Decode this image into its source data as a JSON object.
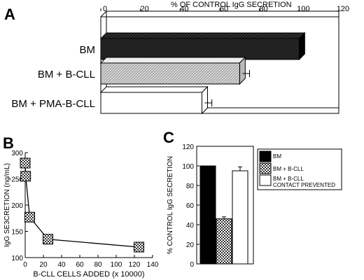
{
  "panels": {
    "a_letter": "A",
    "b_letter": "B",
    "c_letter": "C"
  },
  "chart_data": [
    {
      "panel": "A",
      "type": "bar",
      "orientation": "horizontal",
      "xlabel": "% OF CONTROL IgG SECRETION",
      "xlim": [
        0,
        120
      ],
      "xticks": [
        0,
        20,
        40,
        60,
        80,
        100,
        120
      ],
      "categories": [
        "BM",
        "BM + B-CLL",
        "BM + PMA-B-CLL"
      ],
      "values": [
        100,
        70,
        51
      ],
      "errors": [
        0,
        3,
        3
      ],
      "fills": [
        "#222222",
        "pattern-light",
        "#ffffff"
      ]
    },
    {
      "panel": "B",
      "type": "line",
      "xlabel": "B-CLL CELLS ADDED (x 10000)",
      "ylabel": "IgG SE3CRETION (ng/mL)",
      "xlim": [
        0,
        140
      ],
      "ylim": [
        100,
        300
      ],
      "xticks": [
        0,
        20,
        40,
        60,
        80,
        100,
        120,
        140
      ],
      "yticks": [
        100,
        150,
        200,
        250,
        300
      ],
      "points": [
        {
          "x": 0,
          "y": 280
        },
        {
          "x": 0.5,
          "y": 255
        },
        {
          "x": 5,
          "y": 177
        },
        {
          "x": 25,
          "y": 135
        },
        {
          "x": 125,
          "y": 120
        }
      ]
    },
    {
      "panel": "C",
      "type": "bar",
      "ylabel": "% CONTROL IgG SECRETION",
      "ylim": [
        0,
        120
      ],
      "yticks": [
        0,
        20,
        40,
        60,
        80,
        100,
        120
      ],
      "categories": [
        "BM",
        "BM + B-CLL",
        "BM + B-CLL CONTACT PREVENTED"
      ],
      "values": [
        100,
        46,
        95
      ],
      "errors": [
        0,
        2,
        4
      ],
      "legend": [
        {
          "label": "BM",
          "fill": "#000000"
        },
        {
          "label": "BM + B-CLL",
          "fill": "pattern-dark"
        },
        {
          "label": "BM + B-CLL\nCONTACT PREVENTED",
          "fill": "#ffffff"
        }
      ]
    }
  ]
}
